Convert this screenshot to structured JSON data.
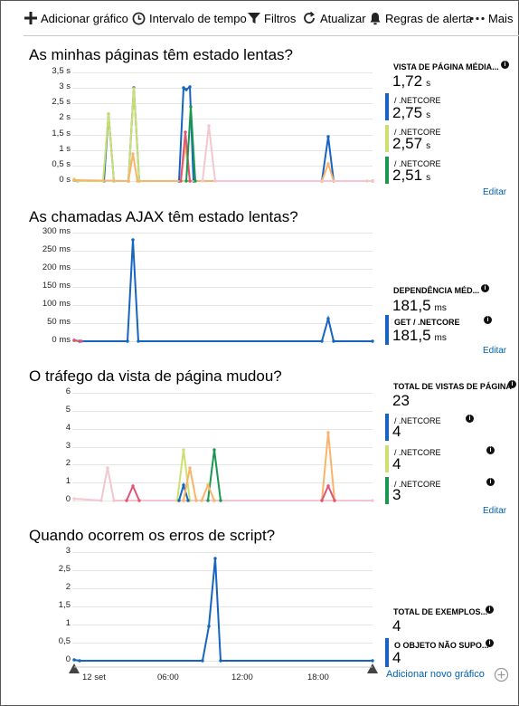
{
  "toolbar": {
    "add_chart": "Adicionar gráfico",
    "time_range": "Intervalo de tempo",
    "filters": "Filtros",
    "refresh": "Atualizar",
    "alert_rules": "Regras de alerta",
    "more": "Mais"
  },
  "colors": {
    "blue": "#1565c0",
    "lime": "#cce070",
    "green": "#1a9850",
    "orange": "#f9b46a",
    "pink": "#f4c7d0",
    "red": "#e05575",
    "accent": "#0060b0"
  },
  "panel1": {
    "title": "As minhas páginas têm estado lentas?",
    "axis": [
      "3,5 s",
      "3 s",
      "2,5 s",
      "2 s",
      "1,5 s",
      "1 s",
      "0,5 s",
      "0 s"
    ],
    "metrics": [
      {
        "label": "VISTA DE PÁGINA MÉDIA...",
        "value": "1,72",
        "unit": "s",
        "color": ""
      },
      {
        "label": "/ .NETCORE",
        "value": "2,75",
        "unit": "s",
        "color": "#1565c0"
      },
      {
        "label": "/ .NETCORE",
        "value": "2,57",
        "unit": "s",
        "color": "#cce070"
      },
      {
        "label": "/ .NETCORE",
        "value": "2,51",
        "unit": "s",
        "color": "#1a9850"
      }
    ],
    "edit": "Editar"
  },
  "panel2": {
    "title": "As chamadas AJAX têm estado lentas?",
    "axis": [
      "300 ms",
      "250 ms",
      "200 ms",
      "150 ms",
      "100 ms",
      "50 ms",
      "0 ms"
    ],
    "metrics": [
      {
        "label": "DEPENDÊNCIA MÉD...",
        "value": "181,5",
        "unit": "ms",
        "color": ""
      },
      {
        "label": "GET / .NETCORE",
        "value": "181,5",
        "unit": "ms",
        "color": "#1565c0"
      }
    ],
    "edit": "Editar"
  },
  "panel3": {
    "title": "O tráfego da vista de página mudou?",
    "axis": [
      "6",
      "5",
      "4",
      "3",
      "2",
      "1",
      "0"
    ],
    "metrics": [
      {
        "label": "TOTAL DE VISTAS DE PÁGINA",
        "value": "23",
        "unit": "",
        "color": ""
      },
      {
        "label": "/ .NETCORE",
        "value": "4",
        "unit": "",
        "color": "#1565c0"
      },
      {
        "label": "/ .NETCORE",
        "value": "4",
        "unit": "",
        "color": "#cce070"
      },
      {
        "label": "/ .NETCORE",
        "value": "3",
        "unit": "",
        "color": "#1a9850"
      }
    ],
    "edit": "Editar"
  },
  "panel4": {
    "title": "Quando ocorrem os erros de script?",
    "axis": [
      "3",
      "2,5",
      "2",
      "1,5",
      "1",
      "0,5",
      "0"
    ],
    "metrics": [
      {
        "label": "TOTAL DE EXEMPLOS...",
        "value": "4",
        "unit": "",
        "color": ""
      },
      {
        "label": "O OBJETO NÃO SUPO...",
        "value": "4",
        "unit": "",
        "color": "#1565c0"
      }
    ],
    "xticks": [
      "12 set",
      "06:00",
      "12:00",
      "18:00"
    ],
    "add_new": "Adicionar novo gráfico"
  }
}
